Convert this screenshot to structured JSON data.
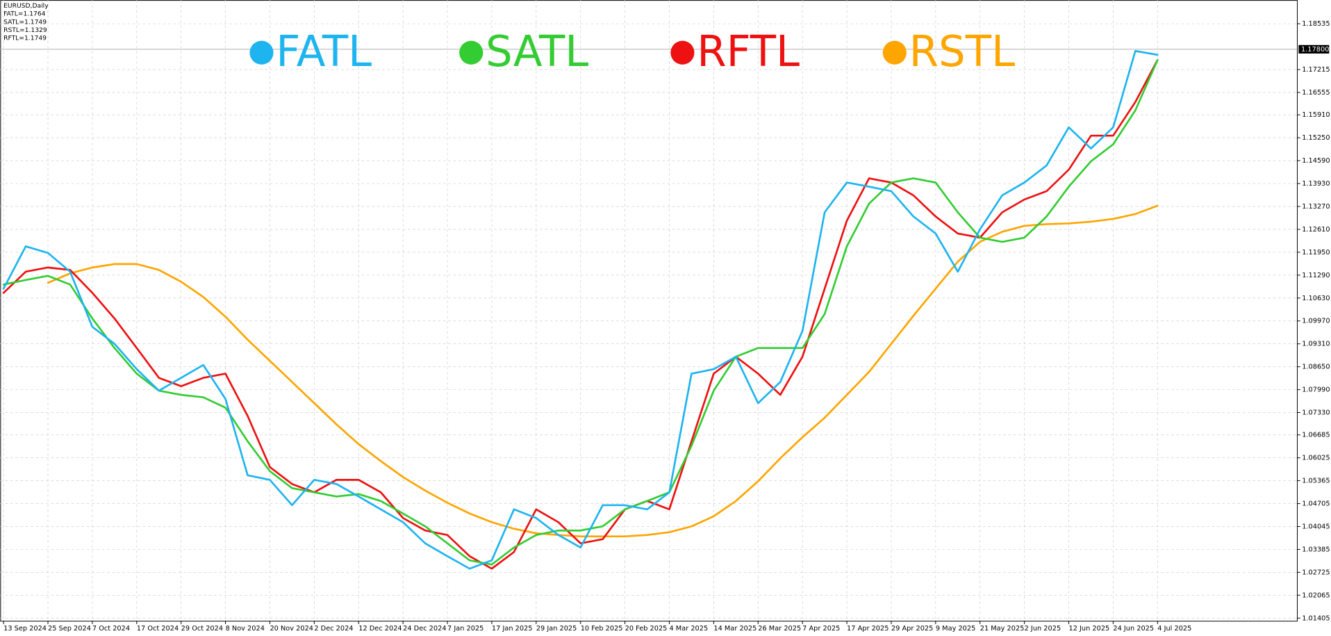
{
  "chart_data": {
    "type": "line",
    "info_lines": [
      "EURUSD,Daily",
      "FATL=1.1764",
      "SATL=1.1749",
      "RSTL=1.1329",
      "RFTL=1.1749"
    ],
    "categories": [
      "13 Sep 2024",
      null,
      "25 Sep 2024",
      null,
      "7 Oct 2024",
      null,
      "17 Oct 2024",
      null,
      "29 Oct 2024",
      null,
      "8 Nov 2024",
      null,
      "20 Nov 2024",
      null,
      "2 Dec 2024",
      null,
      "12 Dec 2024",
      null,
      "24 Dec 2024",
      null,
      "7 Jan 2025",
      null,
      "17 Jan 2025",
      null,
      "29 Jan 2025",
      null,
      "10 Feb 2025",
      null,
      "20 Feb 2025",
      null,
      "4 Mar 2025",
      null,
      "14 Mar 2025",
      null,
      "26 Mar 2025",
      null,
      "7 Apr 2025",
      null,
      "17 Apr 2025",
      null,
      "29 Apr 2025",
      null,
      "9 May 2025",
      null,
      "21 May 2025",
      null,
      "2 Jun 2025",
      null,
      "12 Jun 2025",
      null,
      "24 Jun 2025",
      null,
      "4 Jul 2025"
    ],
    "series": [
      {
        "name": "FATL",
        "color": "#1eb4f0",
        "values": [
          1.109,
          1.1212,
          1.1193,
          1.1139,
          1.098,
          1.0931,
          1.0858,
          1.0796,
          1.0833,
          1.087,
          1.0772,
          1.0552,
          1.0539,
          1.0466,
          1.0539,
          1.0527,
          1.0491,
          1.0454,
          1.0417,
          1.0356,
          1.0319,
          1.0283,
          1.0307,
          1.0454,
          1.0429,
          1.038,
          1.0344,
          1.0466,
          1.0466,
          1.0454,
          1.0503,
          1.0845,
          1.0858,
          1.0894,
          1.076,
          1.0821,
          1.0968,
          1.131,
          1.1396,
          1.1384,
          1.1371,
          1.1298,
          1.1249,
          1.1139,
          1.1261,
          1.1359,
          1.1396,
          1.1445,
          1.1555,
          1.1494,
          1.1555,
          1.1775,
          1.1764
        ]
      },
      {
        "name": "SATL",
        "color": "#33cc33",
        "values": [
          1.1102,
          1.1115,
          1.1127,
          1.1102,
          1.1004,
          1.0919,
          1.0845,
          1.0796,
          1.0784,
          1.0777,
          1.0747,
          1.065,
          1.0564,
          1.0515,
          1.0503,
          1.0491,
          1.0498,
          1.0478,
          1.0442,
          1.0405,
          1.0356,
          1.0307,
          1.0295,
          1.0344,
          1.038,
          1.0393,
          1.0393,
          1.0405,
          1.0454,
          1.0478,
          1.0503,
          1.0637,
          1.0796,
          1.0894,
          1.0919,
          1.0919,
          1.0919,
          1.1017,
          1.1212,
          1.1335,
          1.1396,
          1.1408,
          1.1396,
          1.131,
          1.1237,
          1.1225,
          1.1237,
          1.1298,
          1.1384,
          1.1457,
          1.1506,
          1.1604,
          1.1749
        ]
      },
      {
        "name": "RFTL",
        "color": "#ee1111",
        "values": [
          1.1078,
          1.1139,
          1.1151,
          1.1144,
          1.1078,
          1.1004,
          1.0919,
          1.0833,
          1.0809,
          1.0833,
          1.0845,
          1.0723,
          1.0576,
          1.0527,
          1.0503,
          1.0539,
          1.0539,
          1.0503,
          1.0429,
          1.0393,
          1.038,
          1.0319,
          1.0283,
          1.0331,
          1.0454,
          1.0417,
          1.0356,
          1.0368,
          1.0454,
          1.0478,
          1.0454,
          1.065,
          1.0845,
          1.0894,
          1.0845,
          1.0784,
          1.0894,
          1.109,
          1.1286,
          1.1408,
          1.1396,
          1.1359,
          1.1298,
          1.1249,
          1.1237,
          1.131,
          1.1347,
          1.1371,
          1.1433,
          1.1531,
          1.1531,
          1.1628,
          1.1749
        ]
      },
      {
        "name": "RSTL",
        "color": "#ffa500",
        "values": [
          null,
          null,
          1.1107,
          1.1134,
          1.1151,
          1.1161,
          1.1161,
          1.1144,
          1.111,
          1.1066,
          1.1009,
          1.0943,
          1.0882,
          1.0821,
          1.076,
          1.0699,
          1.0642,
          1.0593,
          1.0547,
          1.0508,
          1.0473,
          1.0442,
          1.0417,
          1.0398,
          1.0385,
          1.038,
          1.0376,
          1.0376,
          1.0376,
          1.038,
          1.0388,
          1.0405,
          1.0434,
          1.0478,
          1.0535,
          1.0601,
          1.0662,
          1.0718,
          1.0784,
          1.085,
          1.0931,
          1.1012,
          1.109,
          1.1168,
          1.1225,
          1.1254,
          1.1271,
          1.1276,
          1.1278,
          1.1283,
          1.1291,
          1.1305,
          1.1329
        ]
      }
    ],
    "ylim": [
      1.0133,
      1.1922
    ],
    "yticks": [
      1.01405,
      1.02065,
      1.02725,
      1.03385,
      1.04045,
      1.04705,
      1.05365,
      1.06025,
      1.06685,
      {
        "value": 1.0733,
        "label": "1.07330"
      },
      {
        "value": 1.0799,
        "label": "1.07990"
      },
      {
        "value": 1.0865,
        "label": "1.08650"
      },
      {
        "value": 1.0931,
        "label": "1.09310"
      },
      {
        "value": 1.0997,
        "label": "1.09970"
      },
      {
        "value": 1.1063,
        "label": "1.10630"
      },
      {
        "value": 1.1129,
        "label": "1.11290"
      },
      {
        "value": 1.1195,
        "label": "1.11950"
      },
      {
        "value": 1.1261,
        "label": "1.12610"
      },
      {
        "value": 1.1327,
        "label": "1.13270"
      },
      {
        "value": 1.1393,
        "label": "1.13930"
      },
      {
        "value": 1.1459,
        "label": "1.14590"
      },
      {
        "value": 1.1525,
        "label": "1.15250"
      },
      {
        "value": 1.1591,
        "label": "1.15910"
      },
      1.16555,
      1.17215,
      1.18535
    ],
    "current_price": {
      "value": 1.178,
      "label": "1.17800"
    },
    "grid": true
  }
}
